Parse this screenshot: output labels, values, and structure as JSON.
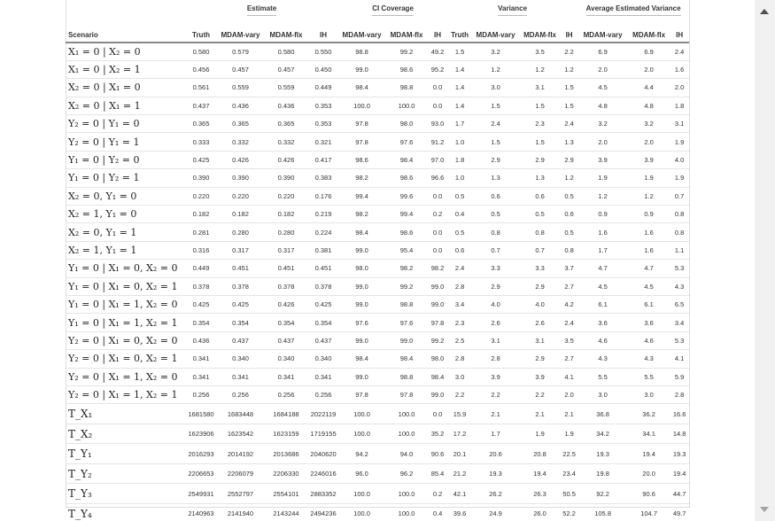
{
  "groups": [
    "Estimate",
    "CI Coverage",
    "Variance",
    "Average Estimated Variance"
  ],
  "columns": [
    "Scenario",
    "Truth",
    "MDAM-vary",
    "MDAM-flx",
    "IH",
    "MDAM-vary",
    "MDAM-flx",
    "IH",
    "Truth",
    "MDAM-vary",
    "MDAM-flx",
    "IH",
    "MDAM-vary",
    "MDAM-flx",
    "IH"
  ],
  "rows": [
    {
      "sc": "X₁ = 0 | X₂ = 0",
      "v": [
        "0.580",
        "0.579",
        "0.580",
        "0.550",
        "98.8",
        "99.2",
        "49.2",
        "1.5",
        "3.2",
        "3.5",
        "2.2",
        "6.9",
        "6.9",
        "2.4"
      ]
    },
    {
      "sc": "X₁ = 0 | X₂ = 1",
      "v": [
        "0.456",
        "0.457",
        "0.457",
        "0.450",
        "99.0",
        "98.6",
        "95.2",
        "1.4",
        "1.2",
        "1.2",
        "1.2",
        "2.0",
        "2.0",
        "1.6"
      ]
    },
    {
      "sc": "X₂ = 0 | X₁ = 0",
      "v": [
        "0.561",
        "0.559",
        "0.559",
        "0.449",
        "98.4",
        "98.8",
        "0.0",
        "1.4",
        "3.0",
        "3.1",
        "1.5",
        "4.5",
        "4.4",
        "2.0"
      ]
    },
    {
      "sc": "X₂ = 0 | X₁ = 1",
      "v": [
        "0.437",
        "0.436",
        "0.436",
        "0.353",
        "100.0",
        "100.0",
        "0.0",
        "1.4",
        "1.5",
        "1.5",
        "1.5",
        "4.8",
        "4.8",
        "1.8"
      ]
    },
    {
      "sc": "Y₂ = 0 | Y₁ = 0",
      "v": [
        "0.365",
        "0.365",
        "0.365",
        "0.353",
        "97.8",
        "98.0",
        "93.0",
        "1.7",
        "2.4",
        "2.3",
        "2.4",
        "3.2",
        "3.2",
        "3.1"
      ]
    },
    {
      "sc": "Y₂ = 0 | Y₁ = 1",
      "v": [
        "0.333",
        "0.332",
        "0.332",
        "0.321",
        "97.8",
        "97.6",
        "91.2",
        "1.0",
        "1.5",
        "1.5",
        "1.3",
        "2.0",
        "2.0",
        "1.9"
      ]
    },
    {
      "sc": "Y₁ = 0 | Y₂ = 0",
      "v": [
        "0.425",
        "0.426",
        "0.426",
        "0.417",
        "98.6",
        "98.4",
        "97.0",
        "1.8",
        "2.9",
        "2.9",
        "2.9",
        "3.9",
        "3.9",
        "4.0"
      ]
    },
    {
      "sc": "Y₁ = 0 | Y₂ = 1",
      "v": [
        "0.390",
        "0.390",
        "0.390",
        "0.383",
        "98.2",
        "98.6",
        "96.6",
        "1.0",
        "1.3",
        "1.3",
        "1.2",
        "1.9",
        "1.9",
        "1.9"
      ]
    },
    {
      "sc": "X₂ = 0, Y₁ = 0",
      "v": [
        "0.220",
        "0.220",
        "0.220",
        "0.176",
        "99.4",
        "99.6",
        "0.0",
        "0.5",
        "0.6",
        "0.6",
        "0.5",
        "1.2",
        "1.2",
        "0.7"
      ]
    },
    {
      "sc": "X₂ = 1, Y₁ = 0",
      "v": [
        "0.182",
        "0.182",
        "0.182",
        "0.219",
        "98.2",
        "99.4",
        "0.2",
        "0.4",
        "0.5",
        "0.5",
        "0.6",
        "0.9",
        "0.9",
        "0.8"
      ]
    },
    {
      "sc": "X₂ = 0, Y₁ = 1",
      "v": [
        "0.281",
        "0.280",
        "0.280",
        "0.224",
        "98.4",
        "98.6",
        "0.0",
        "0.5",
        "0.8",
        "0.8",
        "0.5",
        "1.6",
        "1.6",
        "0.8"
      ]
    },
    {
      "sc": "X₂ = 1, Y₁ = 1",
      "v": [
        "0.316",
        "0.317",
        "0.317",
        "0.381",
        "99.0",
        "95.4",
        "0.0",
        "0.6",
        "0.7",
        "0.7",
        "0.8",
        "1.7",
        "1.6",
        "1.1"
      ]
    },
    {
      "sc": "Y₁ = 0 | X₁ = 0, X₂ = 0",
      "v": [
        "0.449",
        "0.451",
        "0.451",
        "0.451",
        "98.0",
        "98.2",
        "98.2",
        "2.4",
        "3.3",
        "3.3",
        "3.7",
        "4.7",
        "4.7",
        "5.3"
      ]
    },
    {
      "sc": "Y₁ = 0 | X₁ = 0, X₂ = 1",
      "v": [
        "0.378",
        "0.378",
        "0.378",
        "0.378",
        "99.0",
        "99.2",
        "99.0",
        "2.8",
        "2.9",
        "2.9",
        "2.7",
        "4.5",
        "4.5",
        "4.3"
      ]
    },
    {
      "sc": "Y₁ = 0 | X₁ = 1, X₂ = 0",
      "v": [
        "0.425",
        "0.425",
        "0.426",
        "0.425",
        "99.0",
        "98.8",
        "99.0",
        "3.4",
        "4.0",
        "4.0",
        "4.2",
        "6.1",
        "6.1",
        "6.5"
      ]
    },
    {
      "sc": "Y₁ = 0 | X₁ = 1, X₂ = 1",
      "v": [
        "0.354",
        "0.354",
        "0.354",
        "0.354",
        "97.6",
        "97.6",
        "97.8",
        "2.3",
        "2.6",
        "2.6",
        "2.4",
        "3.6",
        "3.6",
        "3.4"
      ]
    },
    {
      "sc": "Y₂ = 0 | X₁ = 0, X₂ = 0",
      "v": [
        "0.436",
        "0.437",
        "0.437",
        "0.437",
        "99.0",
        "99.0",
        "99.2",
        "2.5",
        "3.1",
        "3.1",
        "3.5",
        "4.6",
        "4.6",
        "5.3"
      ]
    },
    {
      "sc": "Y₂ = 0 | X₁ = 0, X₂ = 1",
      "v": [
        "0.341",
        "0.340",
        "0.340",
        "0.340",
        "98.4",
        "98.4",
        "98.0",
        "2.8",
        "2.8",
        "2.9",
        "2.7",
        "4.3",
        "4.3",
        "4.1"
      ]
    },
    {
      "sc": "Y₂ = 0 | X₁ = 1, X₂ = 0",
      "v": [
        "0.341",
        "0.341",
        "0.341",
        "0.341",
        "99.0",
        "98.8",
        "98.4",
        "3.0",
        "3.9",
        "3.9",
        "4.1",
        "5.5",
        "5.5",
        "5.9"
      ]
    },
    {
      "sc": "Y₂ = 0 | X₁ = 1, X₂ = 1",
      "v": [
        "0.256",
        "0.256",
        "0.256",
        "0.256",
        "97.8",
        "97.8",
        "99.0",
        "2.2",
        "2.2",
        "2.2",
        "2.0",
        "3.0",
        "3.0",
        "2.8"
      ]
    },
    {
      "sc": "T_X₁",
      "t": true,
      "v": [
        "1681580",
        "1683448",
        "1684188",
        "2022119",
        "100.0",
        "100.0",
        "0.0",
        "15.9",
        "2.1",
        "2.1",
        "2.1",
        "36.8",
        "36.2",
        "16.6"
      ]
    },
    {
      "sc": "T_X₂",
      "t": true,
      "v": [
        "1623906",
        "1623542",
        "1623159",
        "1719155",
        "100.0",
        "100.0",
        "35.2",
        "17.2",
        "1.7",
        "1.9",
        "1.9",
        "34.2",
        "34.1",
        "14.8"
      ]
    },
    {
      "sc": "T_Y₁",
      "t": true,
      "v": [
        "2016293",
        "2014192",
        "2013686",
        "2040620",
        "94.2",
        "94.0",
        "90.6",
        "20.1",
        "20.6",
        "20.8",
        "22.5",
        "19.3",
        "19.4",
        "19.3"
      ]
    },
    {
      "sc": "T_Y₂",
      "t": true,
      "v": [
        "2206653",
        "2206079",
        "2206330",
        "2246016",
        "96.0",
        "96.2",
        "85.4",
        "21.2",
        "19.3",
        "19.4",
        "23.4",
        "19.8",
        "20.0",
        "19.4"
      ]
    },
    {
      "sc": "T_Y₃",
      "t": true,
      "v": [
        "2549931",
        "2552797",
        "2554101",
        "2883352",
        "100.0",
        "100.0",
        "0.2",
        "42.1",
        "26.2",
        "26.3",
        "50.5",
        "92.2",
        "90.6",
        "44.7"
      ]
    },
    {
      "sc": "T_Y₄",
      "t": true,
      "v": [
        "2140963",
        "2141940",
        "2143244",
        "2494236",
        "100.0",
        "100.0",
        "0.4",
        "39.6",
        "24.9",
        "26.0",
        "52.2",
        "105.8",
        "104.7",
        "49.7"
      ]
    }
  ]
}
